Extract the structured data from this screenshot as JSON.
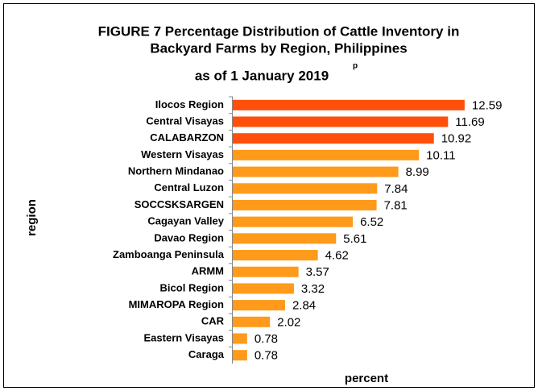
{
  "chart_data": {
    "type": "bar",
    "orientation": "horizontal",
    "title": [
      "FIGURE 7  Percentage Distribution of Cattle Inventory in",
      "Backyard Farms by Region, Philippines"
    ],
    "subtitle": "as of 1 January  2019",
    "subtitle_superscript": "p",
    "x_label": "percent",
    "y_label": "region",
    "categories": [
      "Ilocos Region",
      "Central Visayas",
      "CALABARZON",
      "Western Visayas",
      "Northern Mindanao",
      "Central Luzon",
      "SOCCSKSARGEN",
      "Cagayan Valley",
      "Davao Region",
      "Zamboanga Peninsula",
      "ARMM",
      "Bicol Region",
      "MIMAROPA Region",
      "CAR",
      "Eastern Visayas",
      "Caraga"
    ],
    "values": [
      12.59,
      11.69,
      10.92,
      10.11,
      8.99,
      7.84,
      7.81,
      6.52,
      5.61,
      4.62,
      3.57,
      3.32,
      2.84,
      2.02,
      0.78,
      0.78
    ],
    "colors": [
      "#ff4f0a",
      "#ff4f0a",
      "#ff4f0a",
      "#ff9a1a",
      "#ff9a1a",
      "#ff9a1a",
      "#ff9a1a",
      "#ff9a1a",
      "#ff9a1a",
      "#ff9a1a",
      "#ff9a1a",
      "#ff9a1a",
      "#ff9a1a",
      "#ff9a1a",
      "#ff9a1a",
      "#ff9a1a"
    ],
    "xlim": [
      0,
      15
    ]
  }
}
